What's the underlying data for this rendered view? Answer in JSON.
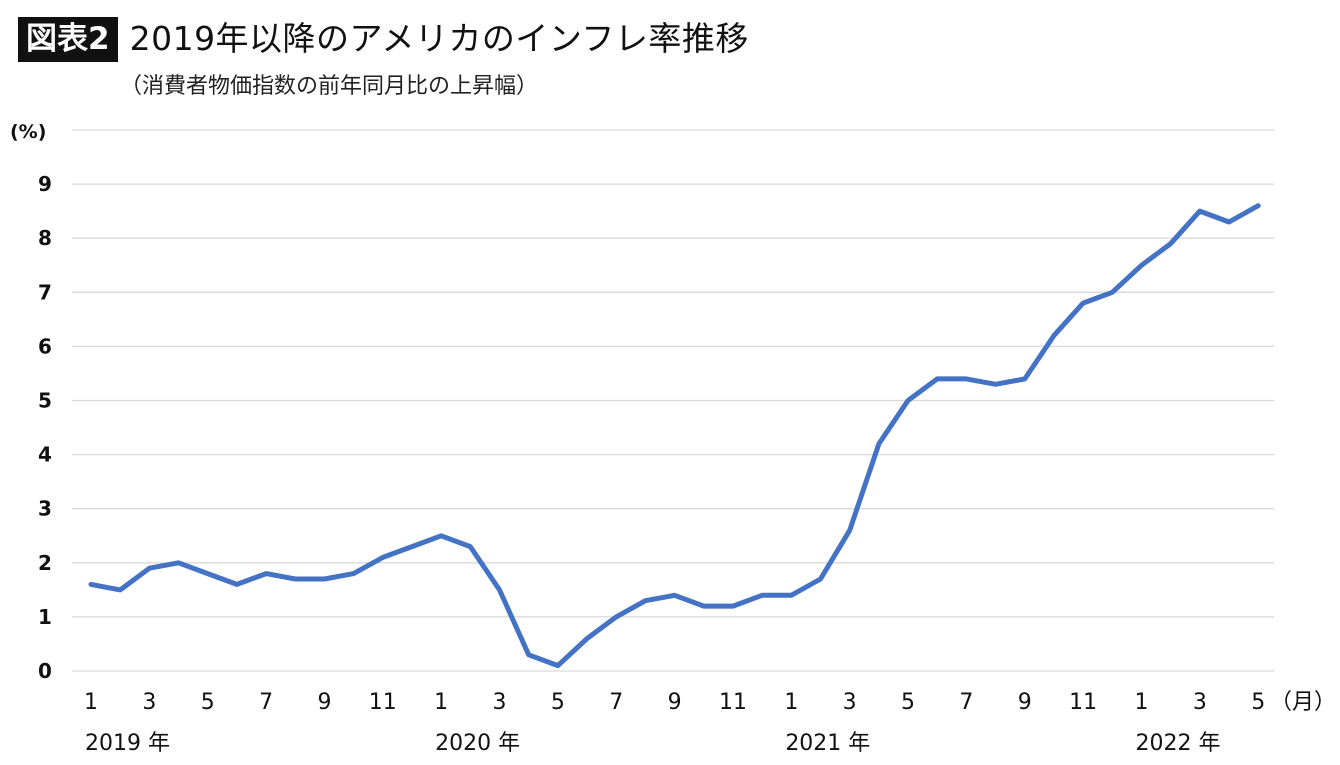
{
  "header": {
    "badge": "図表2",
    "title": "2019年以降のアメリカのインフレ率推移",
    "subtitle": "（消費者物価指数の前年同月比の上昇幅）"
  },
  "colors": {
    "line": "#4472C4",
    "grid": "#d9d9d9"
  },
  "chart_data": {
    "type": "line",
    "y_unit_label": "(%)",
    "x_unit_label": "（月）",
    "ylim": [
      0,
      10
    ],
    "y_ticks": [
      0,
      1,
      2,
      3,
      4,
      5,
      6,
      7,
      8,
      9
    ],
    "grid": true,
    "x_tick_labels": [
      "1",
      "3",
      "5",
      "7",
      "9",
      "11",
      "1",
      "3",
      "5",
      "7",
      "9",
      "11",
      "1",
      "3",
      "5",
      "7",
      "9",
      "11",
      "1",
      "3",
      "5"
    ],
    "x_tick_indices": [
      0,
      2,
      4,
      6,
      8,
      10,
      12,
      14,
      16,
      18,
      20,
      22,
      24,
      26,
      28,
      30,
      32,
      34,
      36,
      38,
      40
    ],
    "years": [
      {
        "label": "2019 年",
        "index": 0
      },
      {
        "label": "2020 年",
        "index": 12
      },
      {
        "label": "2021 年",
        "index": 24
      },
      {
        "label": "2022 年",
        "index": 36
      }
    ],
    "series": [
      {
        "values": [
          1.6,
          1.5,
          1.9,
          2.0,
          1.8,
          1.6,
          1.8,
          1.7,
          1.7,
          1.8,
          2.1,
          2.3,
          2.5,
          2.3,
          1.5,
          0.3,
          0.1,
          0.6,
          1.0,
          1.3,
          1.4,
          1.2,
          1.2,
          1.4,
          1.4,
          1.7,
          2.6,
          4.2,
          5.0,
          5.4,
          5.4,
          5.3,
          5.4,
          6.2,
          6.8,
          7.0,
          7.5,
          7.9,
          8.5,
          8.3,
          8.6
        ]
      }
    ]
  }
}
